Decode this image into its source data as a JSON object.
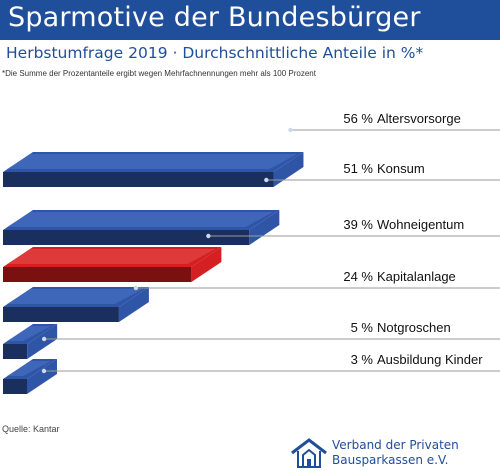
{
  "header": {
    "title": "Sparmotive der Bundesbürger",
    "subtitle": "Herbstumfrage 2019 · Durchschnittliche Anteile in %*",
    "footnote": "*Die Summe der Prozentanteile ergibt wegen Mehrfachnennungen mehr als 100 Prozent"
  },
  "footer": {
    "source": "Quelle: Kantar",
    "logo_line1": "Verband der Privaten",
    "logo_line2": "Bausparkassen e.V."
  },
  "colors": {
    "brand": "#1f4e9a",
    "bar_blue": "#2f56a6",
    "bar_red": "#d42020",
    "leader": "#9a9a9a"
  },
  "chart_data": {
    "type": "bar",
    "orientation": "horizontal",
    "unit": "%",
    "categories": [
      "Altersvorsorge",
      "Konsum",
      "Wohneigentum",
      "Kapitalanlage",
      "Notgroschen",
      "Ausbildung Kinder"
    ],
    "values": [
      56,
      51,
      39,
      24,
      5,
      3
    ],
    "value_labels": [
      "56 %",
      "51 %",
      "39 %",
      "24 %",
      "5 %",
      "3 %"
    ],
    "highlight": [
      "blue",
      "blue",
      "red",
      "blue",
      "blue",
      "blue"
    ]
  }
}
